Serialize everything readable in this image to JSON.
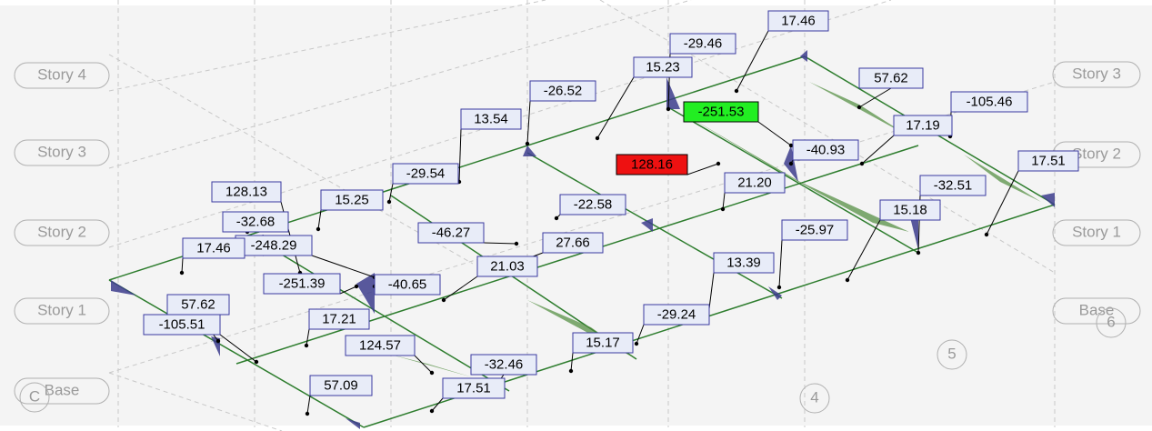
{
  "left_story_labels": [
    "Story 4",
    "Story 3",
    "Story 2",
    "Story 1",
    "Base"
  ],
  "right_story_labels": [
    "Story 3",
    "Story 2",
    "Story 1",
    "Base"
  ],
  "grid_bubbles": [
    "6",
    "5",
    "4",
    "C"
  ],
  "value_labels": [
    "17.46",
    "-29.46",
    "15.23",
    "57.62",
    "-26.52",
    "-105.46",
    "-251.53",
    "13.54",
    "17.19",
    "-40.93",
    "128.16",
    "17.51",
    "-29.54",
    "21.20",
    "-32.51",
    "128.13",
    "15.25",
    "-22.58",
    "15.18",
    "-32.68",
    "-46.27",
    "-25.97",
    "-248.29",
    "27.66",
    "17.46",
    "21.03",
    "13.39",
    "-251.39",
    "-40.65",
    "57.62",
    "-105.51",
    "17.21",
    "-29.24",
    "124.57",
    "15.17",
    "-32.46",
    "57.09",
    "17.51"
  ]
}
